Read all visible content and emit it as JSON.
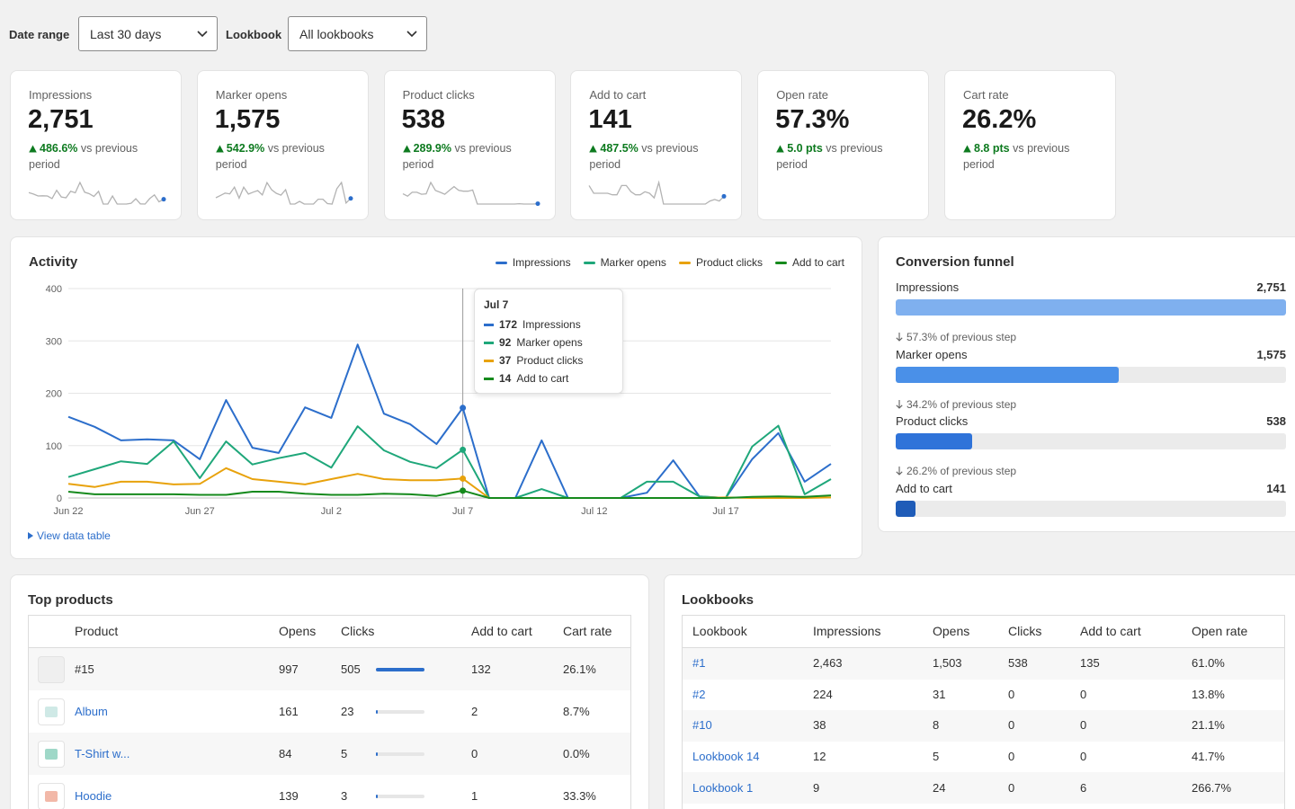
{
  "filters": [
    {
      "label": "Date range",
      "value": "Last 30 days"
    },
    {
      "label": "Lookbook",
      "value": "All lookbooks"
    }
  ],
  "kpis": [
    {
      "label": "Impressions",
      "value": "2,751",
      "change": "486.6%",
      "change_text": "vs previous period"
    },
    {
      "label": "Marker opens",
      "value": "1,575",
      "change": "542.9%",
      "change_text": "vs previous period"
    },
    {
      "label": "Product clicks",
      "value": "538",
      "change": "289.9%",
      "change_text": "vs previous period"
    },
    {
      "label": "Add to cart",
      "value": "141",
      "change": "487.5%",
      "change_text": "vs previous period"
    },
    {
      "label": "Open rate",
      "value": "57.3%",
      "change": "5.0 pts",
      "change_text": "vs previous period"
    },
    {
      "label": "Cart rate",
      "value": "26.2%",
      "change": "8.8 pts",
      "change_text": "vs previous period"
    }
  ],
  "chart_data": {
    "type": "line",
    "title": "Activity",
    "categories": [
      "Jun 22",
      null,
      null,
      null,
      null,
      "Jun 27",
      null,
      null,
      null,
      null,
      "Jul 2",
      null,
      null,
      null,
      null,
      "Jul 7",
      null,
      null,
      null,
      null,
      "Jul 12",
      null,
      null,
      null,
      null,
      "Jul 17",
      null,
      null,
      null,
      null
    ],
    "series": [
      {
        "name": "Impressions",
        "color": "#2c6ecb",
        "values": [
          155,
          136,
          110,
          112,
          110,
          74,
          187,
          96,
          86,
          173,
          153,
          293,
          161,
          141,
          103,
          172,
          0,
          0,
          110,
          0,
          0,
          0,
          10,
          72,
          3,
          0,
          74,
          124,
          31,
          65
        ]
      },
      {
        "name": "Marker opens",
        "color": "#1fa77a",
        "values": [
          40,
          55,
          70,
          65,
          108,
          38,
          108,
          64,
          76,
          86,
          58,
          137,
          91,
          69,
          57,
          92,
          0,
          0,
          17,
          0,
          0,
          0,
          31,
          31,
          3,
          0,
          98,
          138,
          7,
          36
        ]
      },
      {
        "name": "Product clicks",
        "color": "#e8a20c",
        "values": [
          27,
          21,
          31,
          31,
          26,
          27,
          57,
          36,
          31,
          26,
          36,
          46,
          36,
          34,
          34,
          37,
          0,
          0,
          0,
          0,
          0,
          0,
          0,
          0,
          0,
          1,
          0,
          0,
          0,
          1
        ]
      },
      {
        "name": "Add to cart",
        "color": "#168a1d",
        "values": [
          12,
          7,
          7,
          7,
          7,
          6,
          6,
          12,
          12,
          8,
          6,
          6,
          8,
          7,
          4,
          14,
          0,
          0,
          0,
          0,
          0,
          0,
          0,
          0,
          0,
          0,
          2,
          3,
          2,
          5
        ]
      }
    ],
    "ylim": [
      0,
      400
    ],
    "yticks": [
      0,
      100,
      200,
      300,
      400
    ],
    "grid": true,
    "tooltip": {
      "title": "Jul 7"
    },
    "data_table_link": "View data table"
  },
  "funnel": {
    "title": "Conversion funnel",
    "steps": [
      {
        "name": "Impressions",
        "value": 2751,
        "label": "2,751",
        "color": "#7fb0ef",
        "note": "57.3% of previous step"
      },
      {
        "name": "Marker opens",
        "value": 1575,
        "label": "1,575",
        "color": "#4a90e8",
        "note": "34.2% of previous step"
      },
      {
        "name": "Product clicks",
        "value": 538,
        "label": "538",
        "color": "#2f73d9",
        "note": "26.2% of previous step"
      },
      {
        "name": "Add to cart",
        "value": 141,
        "label": "141",
        "color": "#1f5cb8"
      }
    ]
  },
  "top_products": {
    "title": "Top products",
    "columns": [
      "Product",
      "Opens",
      "Clicks",
      "Add to cart",
      "Cart rate"
    ],
    "rows": [
      {
        "linked": false,
        "cells": [
          "#15",
          997,
          505,
          132,
          "26.1%"
        ]
      },
      {
        "linked": true,
        "cells": [
          "Album",
          161,
          23,
          2,
          "8.7%"
        ]
      },
      {
        "linked": true,
        "cells": [
          "T-Shirt w...",
          84,
          5,
          0,
          "0.0%"
        ]
      },
      {
        "linked": true,
        "cells": [
          "Hoodie",
          139,
          3,
          1,
          "33.3%"
        ]
      }
    ]
  },
  "lookbooks": {
    "title": "Lookbooks",
    "columns": [
      "Lookbook",
      "Impressions",
      "Opens",
      "Clicks",
      "Add to cart",
      "Open rate"
    ],
    "rows": [
      [
        "#1",
        "2,463",
        "1,503",
        538,
        135,
        "61.0%"
      ],
      [
        "#2",
        224,
        31,
        0,
        0,
        "13.8%"
      ],
      [
        "#10",
        38,
        8,
        0,
        0,
        "21.1%"
      ],
      [
        "Lookbook 14",
        12,
        5,
        0,
        0,
        "41.7%"
      ],
      [
        "Lookbook 1",
        9,
        24,
        0,
        6,
        "266.7%"
      ]
    ]
  }
}
